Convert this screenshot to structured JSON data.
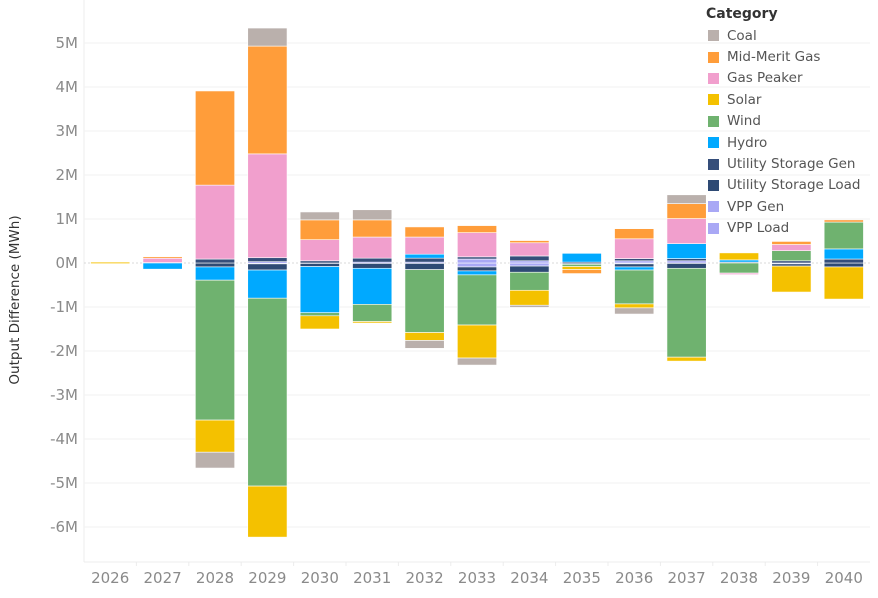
{
  "chart_data": {
    "type": "bar",
    "stacked": true,
    "title": "",
    "xlabel": "",
    "ylabel": "Output Difference (MWh)",
    "ylim": [
      -6.5,
      5.5
    ],
    "y_unit": "M",
    "y_ticks": [
      5,
      4,
      3,
      2,
      1,
      0,
      -1,
      -2,
      -3,
      -4,
      -5,
      -6
    ],
    "y_tick_labels": [
      "5M",
      "4M",
      "3M",
      "2M",
      "1M",
      "0M",
      "-1M",
      "-2M",
      "-3M",
      "-4M",
      "-5M",
      "-6M"
    ],
    "grid": true,
    "legend_position": "top-right",
    "legend_title": "Category",
    "categories": [
      "2026",
      "2027",
      "2028",
      "2029",
      "2030",
      "2031",
      "2032",
      "2033",
      "2034",
      "2035",
      "2036",
      "2037",
      "2038",
      "2039",
      "2040"
    ],
    "series": [
      {
        "name": "Coal",
        "color": "#bab0ac",
        "values": [
          0,
          0,
          -0.36,
          0.41,
          0.18,
          0.23,
          -0.18,
          -0.16,
          -0.05,
          0,
          -0.14,
          0.2,
          0,
          0,
          0
        ]
      },
      {
        "name": "Mid-Merit Gas",
        "color": "#ff9d3a",
        "values": [
          0,
          0.02,
          2.14,
          2.45,
          0.45,
          0.39,
          0.23,
          0.16,
          0.05,
          -0.09,
          0.23,
          0.34,
          0,
          0.07,
          0.05
        ]
      },
      {
        "name": "Gas Peaker",
        "color": "#f19fcd",
        "values": [
          0,
          0.11,
          1.68,
          2.36,
          0.48,
          0.48,
          0.39,
          0.55,
          0.3,
          0,
          0.45,
          0.57,
          -0.02,
          0.14,
          0
        ]
      },
      {
        "name": "Solar",
        "color": "#f4c100",
        "values": [
          0.02,
          0,
          -0.73,
          -1.16,
          -0.3,
          -0.02,
          -0.18,
          -0.75,
          -0.34,
          -0.07,
          -0.09,
          -0.09,
          0.16,
          -0.59,
          -0.73
        ]
      },
      {
        "name": "Wind",
        "color": "#6fb26f",
        "values": [
          0,
          0,
          -3.18,
          -4.27,
          -0.07,
          -0.39,
          -1.43,
          -1.14,
          -0.41,
          -0.05,
          -0.77,
          -2.02,
          -0.23,
          0.23,
          0.61
        ]
      },
      {
        "name": "Hydro",
        "color": "#00a9ff",
        "values": [
          0,
          -0.14,
          -0.3,
          -0.64,
          -1.05,
          -0.82,
          0.09,
          -0.09,
          0,
          0.2,
          -0.07,
          0.34,
          0.05,
          0,
          0.23
        ]
      },
      {
        "name": "Utility Storage Gen",
        "color": "#354e7a",
        "values": [
          0,
          0.01,
          0.09,
          0.09,
          0.05,
          0.09,
          0.09,
          0.05,
          0.11,
          0.02,
          0.05,
          0.05,
          0.02,
          0.05,
          0.09
        ]
      },
      {
        "name": "Utility Storage Load",
        "color": "#2e4a74",
        "values": [
          0,
          0,
          -0.09,
          -0.14,
          -0.07,
          -0.11,
          -0.14,
          -0.09,
          -0.14,
          -0.03,
          -0.07,
          -0.11,
          0,
          -0.05,
          -0.09
        ]
      },
      {
        "name": "VPP Gen",
        "color": "#a9a8f5",
        "values": [
          0,
          0,
          0,
          0.03,
          0,
          0.02,
          0.02,
          0.09,
          0.05,
          0,
          0.05,
          0.05,
          0,
          0,
          0
        ]
      },
      {
        "name": "VPP Load",
        "color": "#a9a8f5",
        "values": [
          0,
          0,
          0,
          -0.02,
          -0.01,
          -0.01,
          -0.01,
          -0.09,
          -0.07,
          0,
          -0.02,
          -0.01,
          0,
          -0.02,
          0
        ]
      }
    ]
  }
}
